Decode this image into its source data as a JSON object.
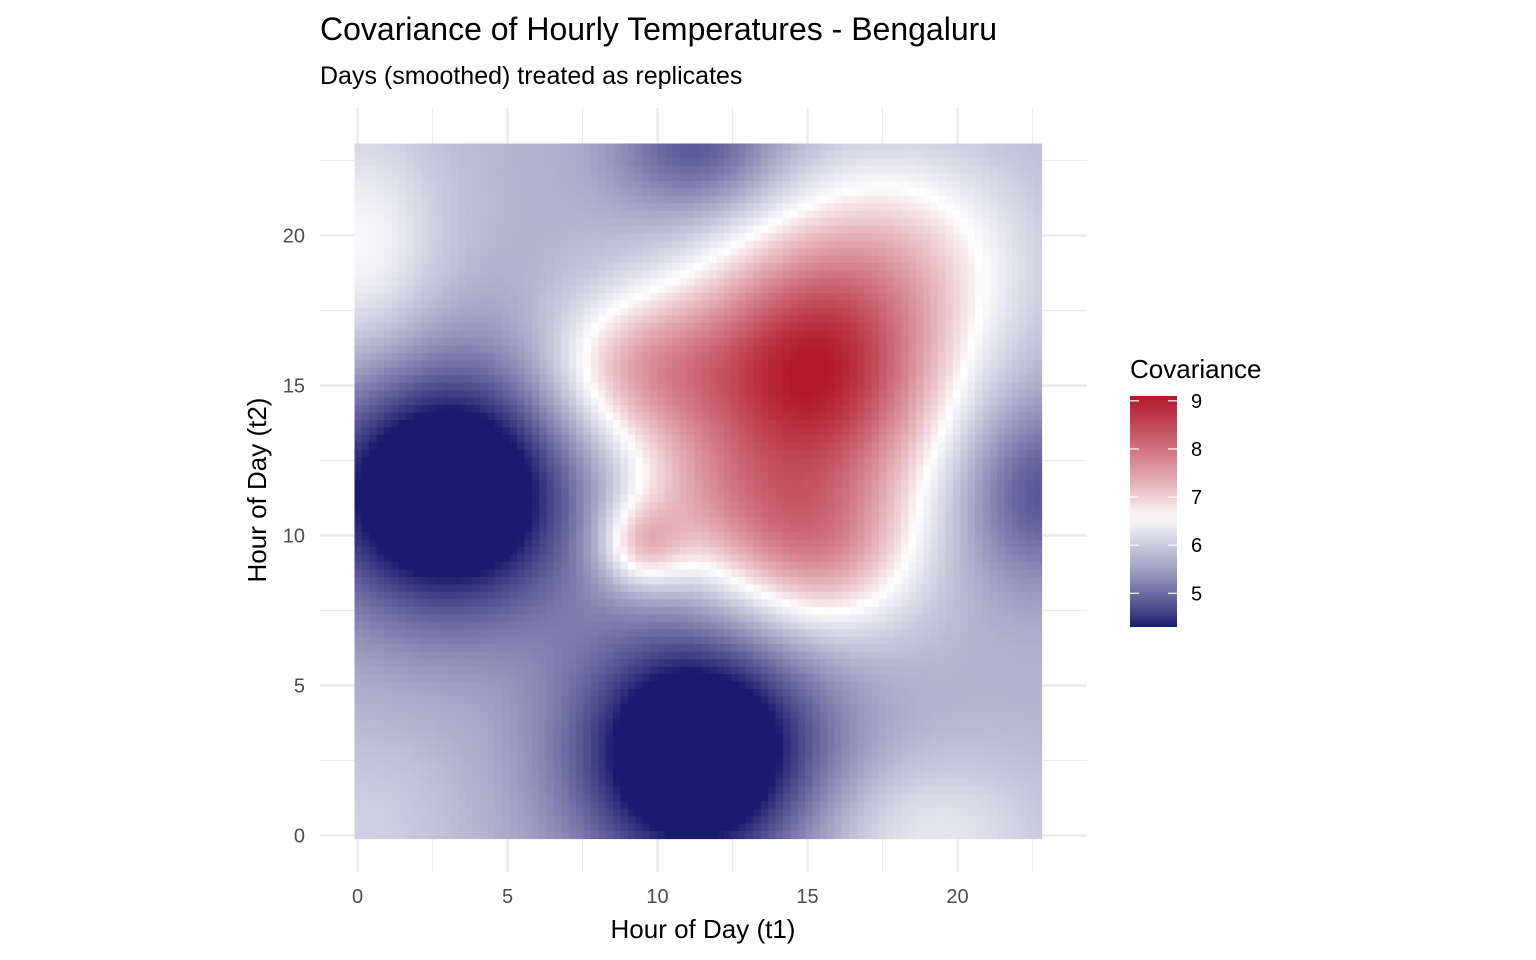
{
  "chart_data": {
    "type": "heatmap",
    "title": "Covariance of Hourly Temperatures - Bengaluru",
    "subtitle": "Days (smoothed) treated as replicates",
    "xlabel": "Hour of Day (t1)",
    "ylabel": "Hour of Day (t2)",
    "x_range": [
      0,
      23
    ],
    "y_range": [
      0,
      23
    ],
    "x_ticks": [
      0,
      5,
      10,
      15,
      20
    ],
    "y_ticks": [
      0,
      5,
      10,
      15,
      20
    ],
    "grid": true,
    "fill_scale": {
      "name": "Covariance",
      "breaks": [
        5,
        6,
        7,
        8,
        9
      ],
      "limits": [
        4.3,
        9.1
      ],
      "midpoint": 6.6,
      "low_color": "#1a1a6e",
      "mid_color": "#ffffff",
      "high_color": "#b2182b"
    },
    "legend_placement": "right",
    "surface": {
      "baseline": 5.75,
      "features": [
        {
          "x": 15.3,
          "y": 15.3,
          "amplitude": 3.2,
          "sx": 3.0,
          "sy": 3.0
        },
        {
          "x": 9.5,
          "y": 15.5,
          "amplitude": 1.4,
          "sx": 2.2,
          "sy": 1.8
        },
        {
          "x": 18.5,
          "y": 19.5,
          "amplitude": 0.9,
          "sx": 3.0,
          "sy": 2.5
        },
        {
          "x": 15.5,
          "y": 9.5,
          "amplitude": 1.6,
          "sx": 2.3,
          "sy": 2.0
        },
        {
          "x": 9.6,
          "y": 9.7,
          "amplitude": 1.2,
          "sx": 1.0,
          "sy": 1.0
        },
        {
          "x": 11.5,
          "y": 11.0,
          "amplitude": 0.9,
          "sx": 2.2,
          "sy": 1.8
        },
        {
          "x": 3.0,
          "y": 11.5,
          "amplitude": -2.3,
          "sx": 3.2,
          "sy": 3.0
        },
        {
          "x": 11.5,
          "y": 2.7,
          "amplitude": -2.3,
          "sx": 3.0,
          "sy": 3.0
        },
        {
          "x": 11.5,
          "y": 23.0,
          "amplitude": -1.0,
          "sx": 2.0,
          "sy": 1.6
        },
        {
          "x": 23.0,
          "y": 11.5,
          "amplitude": -1.0,
          "sx": 1.8,
          "sy": 2.2
        },
        {
          "x": 0.0,
          "y": 19.5,
          "amplitude": 0.8,
          "sx": 2.0,
          "sy": 3.0
        },
        {
          "x": 19.0,
          "y": 0.0,
          "amplitude": 0.6,
          "sx": 3.0,
          "sy": 1.8
        },
        {
          "x": 0.0,
          "y": 0.0,
          "amplitude": 0.3,
          "sx": 2.5,
          "sy": 2.5
        }
      ]
    }
  }
}
